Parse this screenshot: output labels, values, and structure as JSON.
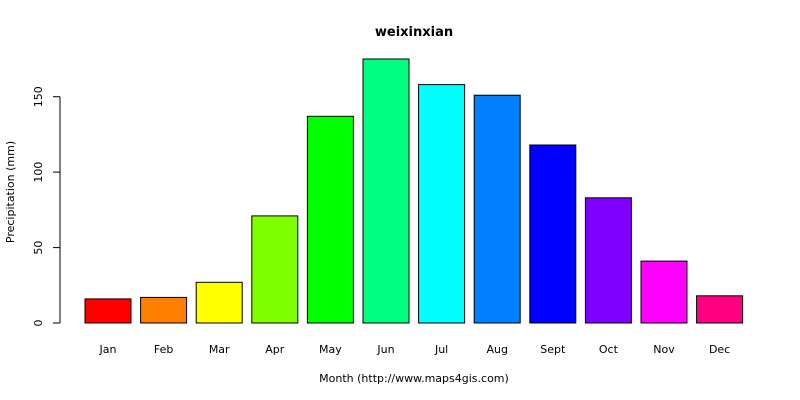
{
  "chart_data": {
    "type": "bar",
    "title": "weixinxian",
    "xlabel": "Month (http://www.maps4gis.com)",
    "ylabel": "Precipitation (mm)",
    "categories": [
      "Jan",
      "Feb",
      "Mar",
      "Apr",
      "May",
      "Jun",
      "Jul",
      "Aug",
      "Sept",
      "Oct",
      "Nov",
      "Dec"
    ],
    "values": [
      16,
      17,
      27,
      71,
      137,
      175,
      158,
      151,
      118,
      83,
      41,
      18
    ],
    "colors": [
      "#ff0000",
      "#ff8000",
      "#ffff00",
      "#80ff00",
      "#00ff00",
      "#00ff80",
      "#00ffff",
      "#0080ff",
      "#0000ff",
      "#8000ff",
      "#ff00ff",
      "#ff0080"
    ],
    "yticks": [
      0,
      50,
      100,
      150
    ],
    "ylim": [
      0,
      175
    ],
    "grid": false,
    "legend": "none"
  }
}
